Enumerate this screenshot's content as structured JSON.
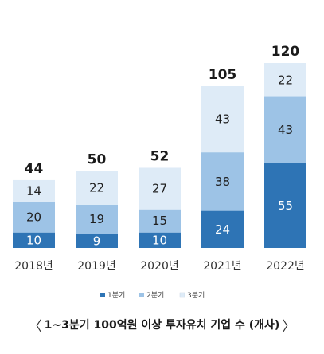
{
  "chart_data": {
    "type": "bar",
    "stacked": true,
    "categories": [
      "2018년",
      "2019년",
      "2020년",
      "2021년",
      "2022년"
    ],
    "series": [
      {
        "name": "1분기",
        "values": [
          10,
          9,
          10,
          24,
          55
        ],
        "color": "#2e74b5",
        "label_color": "#ffffff"
      },
      {
        "name": "2분기",
        "values": [
          20,
          19,
          15,
          38,
          43
        ],
        "color": "#9dc3e6",
        "label_color": "#1f1f1f"
      },
      {
        "name": "3분기",
        "values": [
          14,
          22,
          27,
          43,
          22
        ],
        "color": "#deebf7",
        "label_color": "#1f1f1f"
      }
    ],
    "totals": [
      44,
      50,
      52,
      105,
      120
    ],
    "title": "1~3분기 100억원 이상 투자유치 기업 수 (개사)",
    "legend_position": "bottom",
    "grid": false,
    "ylim": [
      0,
      120
    ]
  },
  "caption": {
    "open": "〈",
    "text": "1~3분기 100억원 이상 투자유치 기업 수 (개사)",
    "close": "〉"
  }
}
